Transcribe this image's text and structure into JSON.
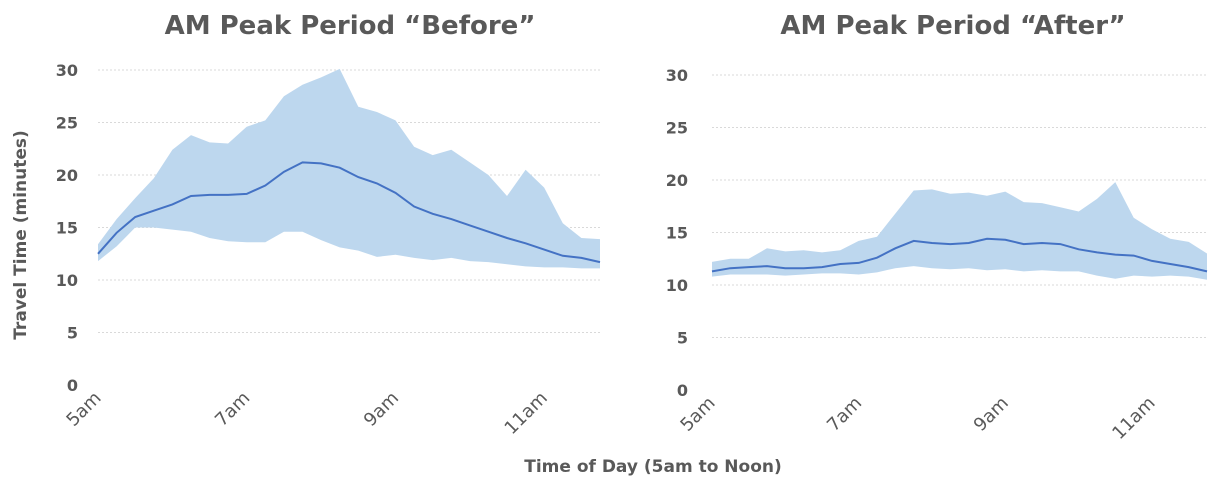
{
  "y_axis_title": "Travel Time (minutes)",
  "x_axis_title": "Time of Day (5am to Noon)",
  "colors": {
    "band": "#bdd7ee",
    "line": "#4472c4",
    "grid": "#d9d9d9",
    "text": "#595959"
  },
  "chart_data": [
    {
      "type": "area",
      "title": "AM Peak Period “Before”",
      "x_tick_labels": [
        "5am",
        "7am",
        "9am",
        "11am"
      ],
      "x_tick_positions": [
        0,
        8,
        16,
        24
      ],
      "ylim": [
        0,
        30
      ],
      "y_ticks": [
        0,
        5,
        10,
        15,
        20,
        25,
        30
      ],
      "grid": true,
      "series": [
        {
          "role": "range-low",
          "values": [
            11.8,
            13.2,
            15.0,
            15.0,
            14.8,
            14.6,
            14.0,
            13.7,
            13.6,
            13.6,
            14.6,
            14.6,
            13.8,
            13.1,
            12.8,
            12.2,
            12.4,
            12.1,
            11.9,
            12.1,
            11.8,
            11.7,
            11.5,
            11.3,
            11.2,
            11.2,
            11.1,
            11.1
          ]
        },
        {
          "role": "range-high",
          "values": [
            13.4,
            15.8,
            17.8,
            19.7,
            22.4,
            23.8,
            23.1,
            23.0,
            24.6,
            25.2,
            27.5,
            28.6,
            29.3,
            30.1,
            26.5,
            26.0,
            25.2,
            22.7,
            21.9,
            22.4,
            21.2,
            20.0,
            18.0,
            20.5,
            18.8,
            15.4,
            14.0,
            13.9
          ]
        },
        {
          "role": "average",
          "values": [
            12.5,
            14.5,
            16.0,
            16.6,
            17.2,
            18.0,
            18.1,
            18.1,
            18.2,
            19.0,
            20.3,
            21.2,
            21.1,
            20.7,
            19.8,
            19.2,
            18.3,
            17.0,
            16.3,
            15.8,
            15.2,
            14.6,
            14.0,
            13.5,
            12.9,
            12.3,
            12.1,
            11.7
          ]
        }
      ]
    },
    {
      "type": "area",
      "title": "AM Peak Period “After”",
      "x_tick_labels": [
        "5am",
        "7am",
        "9am",
        "11am"
      ],
      "x_tick_positions": [
        0,
        8,
        16,
        24
      ],
      "ylim": [
        0,
        30
      ],
      "y_ticks": [
        0,
        5,
        10,
        15,
        20,
        25,
        30
      ],
      "grid": true,
      "series": [
        {
          "role": "range-low",
          "values": [
            10.8,
            11.0,
            11.0,
            11.0,
            10.9,
            11.0,
            11.1,
            11.1,
            11.0,
            11.2,
            11.6,
            11.8,
            11.6,
            11.5,
            11.6,
            11.4,
            11.5,
            11.3,
            11.4,
            11.3,
            11.3,
            10.9,
            10.6,
            10.9,
            10.8,
            10.9,
            10.8,
            10.5
          ]
        },
        {
          "role": "range-high",
          "values": [
            12.2,
            12.5,
            12.5,
            13.5,
            13.2,
            13.3,
            13.1,
            13.3,
            14.2,
            14.6,
            16.8,
            19.0,
            19.1,
            18.7,
            18.8,
            18.5,
            18.9,
            17.9,
            17.8,
            17.4,
            17.0,
            18.2,
            19.8,
            16.4,
            15.3,
            14.4,
            14.1,
            13.0
          ]
        },
        {
          "role": "average",
          "values": [
            11.3,
            11.6,
            11.7,
            11.8,
            11.6,
            11.6,
            11.7,
            12.0,
            12.1,
            12.6,
            13.5,
            14.2,
            14.0,
            13.9,
            14.0,
            14.4,
            14.3,
            13.9,
            14.0,
            13.9,
            13.4,
            13.1,
            12.9,
            12.8,
            12.3,
            12.0,
            11.7,
            11.3
          ]
        }
      ]
    }
  ]
}
